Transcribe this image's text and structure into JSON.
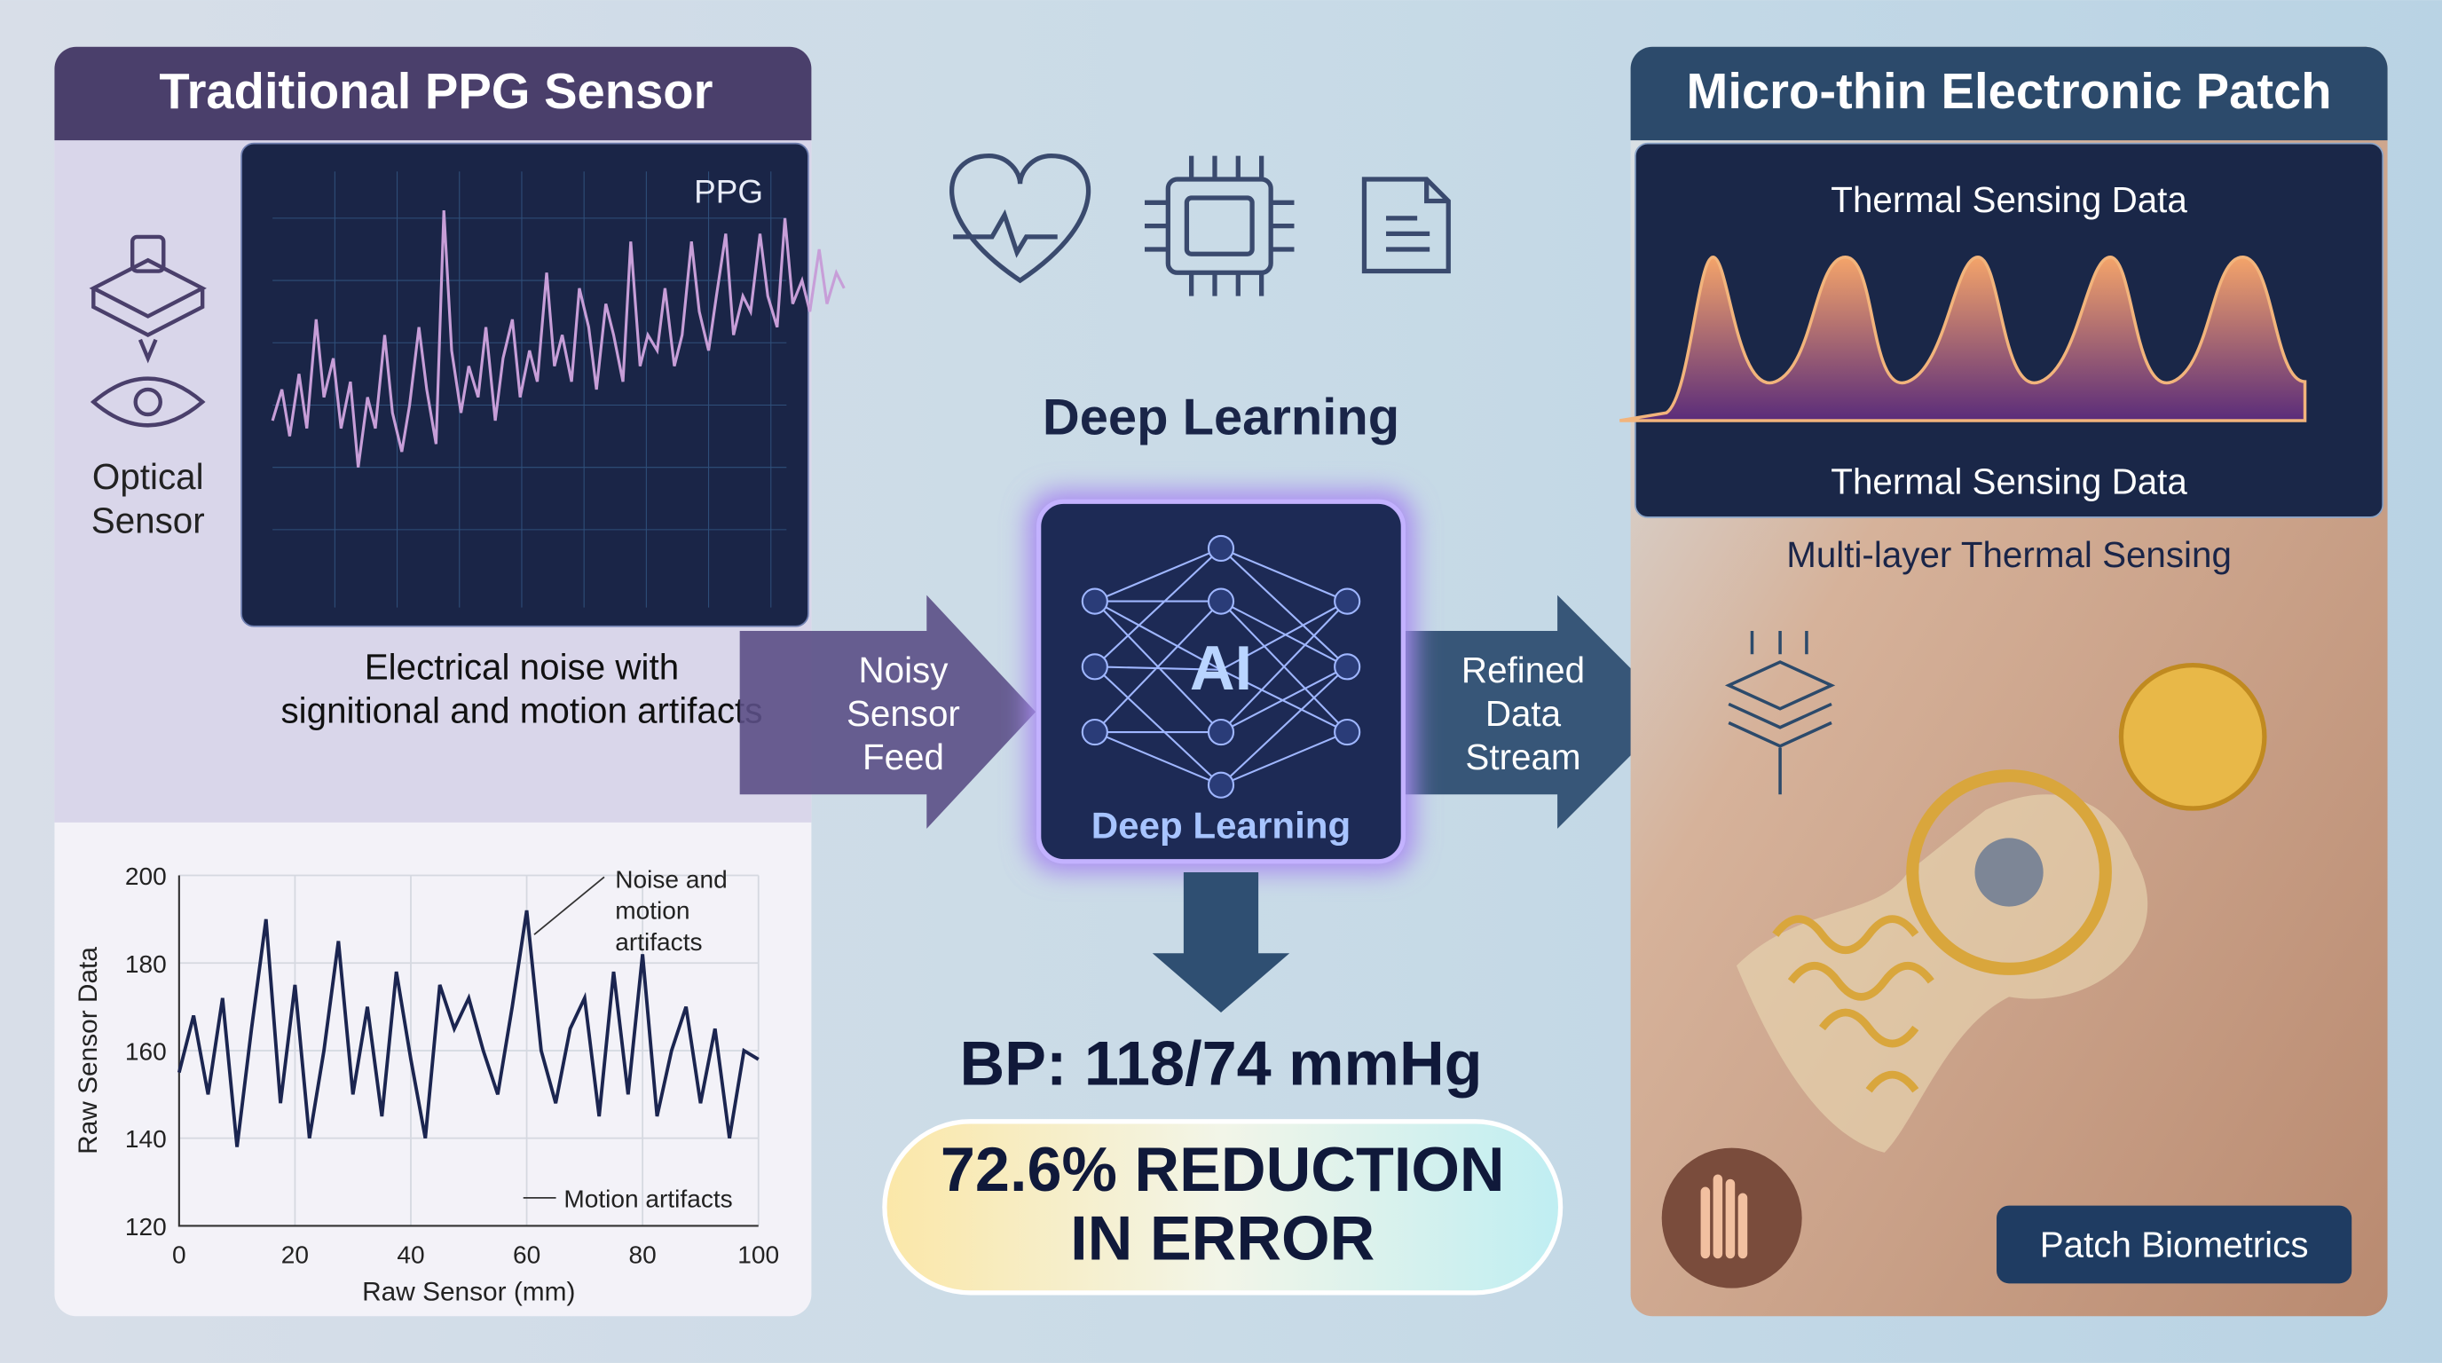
{
  "left_panel": {
    "title": "Traditional PPG Sensor",
    "sensor_label": [
      "Optical",
      "Sensor"
    ],
    "ppg_label": "PPG",
    "caption": [
      "Electrical noise with",
      "signitional and motion artifacts"
    ]
  },
  "chart_data": {
    "type": "line",
    "x_label": "Raw Sensor (mm)",
    "y_label": "Raw Sensor Data",
    "xlim": [
      0,
      100
    ],
    "ylim": [
      120,
      200
    ],
    "xticks": [
      0,
      20,
      40,
      60,
      80,
      100
    ],
    "yticks": [
      120,
      140,
      160,
      180,
      200
    ],
    "grid": true,
    "annotations": [
      [
        "Noise and",
        "motion",
        "artifacts"
      ],
      [
        "Motion artifacts"
      ]
    ],
    "series": [
      {
        "color": "#1b2550",
        "x": [
          0,
          2.5,
          5,
          7.5,
          10,
          12.5,
          15,
          17.5,
          20,
          22.5,
          25,
          27.5,
          30,
          32.5,
          35,
          37.5,
          40,
          42.5,
          45,
          47.5,
          50,
          52.5,
          55,
          57.5,
          60,
          62.5,
          65,
          67.5,
          70,
          72.5,
          75,
          77.5,
          80,
          82.5,
          85,
          87.5,
          90,
          92.5,
          95,
          97.5,
          100
        ],
        "values": [
          155,
          168,
          150,
          172,
          138,
          165,
          190,
          148,
          175,
          140,
          160,
          185,
          150,
          170,
          145,
          178,
          158,
          140,
          175,
          165,
          172,
          160,
          150,
          170,
          192,
          160,
          148,
          165,
          172,
          145,
          178,
          150,
          182,
          145,
          160,
          170,
          148,
          165,
          140,
          160,
          158
        ]
      }
    ]
  },
  "center": {
    "heading": "Deep Learning",
    "ai_label": "AI",
    "ai_caption": "Deep Learning",
    "input_arrow": [
      "Noisy",
      "Sensor",
      "Feed"
    ],
    "output_arrow": [
      "Refined",
      "Data",
      "Stream"
    ],
    "bp": "BP: 118/74 mmHg",
    "result": [
      "72.6% REDUCTION",
      "IN ERROR"
    ]
  },
  "right_panel": {
    "title": "Micro-thin Electronic Patch",
    "chart_title": "Thermal Sensing Data",
    "chart_caption": "Thermal Sensing Data",
    "subtitle": "Multi-layer Thermal Sensing",
    "badge": "Patch Biometrics"
  }
}
